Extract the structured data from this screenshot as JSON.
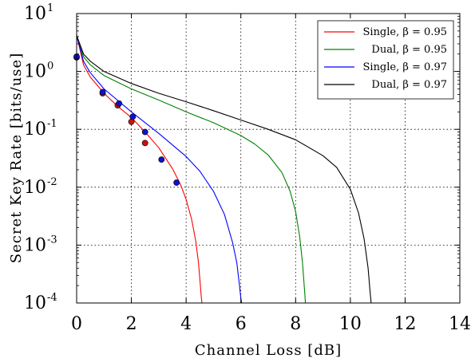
{
  "chart_data": {
    "type": "line",
    "xlabel": "Channel Loss [dB]",
    "ylabel": "Secret Key Rate [bits/use]",
    "xlim": [
      0,
      14
    ],
    "ylim": [
      0.0001,
      10
    ],
    "yscale": "log",
    "grid": true,
    "legend_position": "top-right",
    "x_ticks": [
      "0",
      "2",
      "4",
      "6",
      "8",
      "10",
      "12",
      "14"
    ],
    "y_ticks": [
      {
        "base": "10",
        "exp": "-4"
      },
      {
        "base": "10",
        "exp": "-3"
      },
      {
        "base": "10",
        "exp": "-2"
      },
      {
        "base": "10",
        "exp": "-1"
      },
      {
        "base": "10",
        "exp": "0"
      },
      {
        "base": "10",
        "exp": "1"
      }
    ],
    "series": [
      {
        "name": "Single, β = 0.95",
        "color": "#ff0000",
        "x": [
          0.0,
          0.25,
          0.5,
          1.0,
          1.5,
          2.0,
          2.5,
          3.0,
          3.5,
          3.8,
          4.0,
          4.2,
          4.35,
          4.45,
          4.52,
          4.56,
          4.58
        ],
        "y": [
          4.2,
          1.3,
          0.8,
          0.42,
          0.25,
          0.16,
          0.09,
          0.048,
          0.021,
          0.011,
          0.0062,
          0.0028,
          0.0012,
          0.0005,
          0.0002,
          0.00012,
          0.0001
        ]
      },
      {
        "name": "Dual, β = 0.95",
        "color": "#008000",
        "x": [
          0.0,
          0.25,
          0.5,
          1.0,
          2.0,
          3.0,
          4.0,
          5.0,
          6.0,
          6.5,
          7.0,
          7.5,
          7.8,
          8.0,
          8.15,
          8.25,
          8.32,
          8.36
        ],
        "y": [
          4.2,
          1.8,
          1.3,
          0.85,
          0.5,
          0.32,
          0.2,
          0.13,
          0.078,
          0.056,
          0.036,
          0.018,
          0.0085,
          0.0038,
          0.0014,
          0.0005,
          0.00018,
          0.0001
        ]
      },
      {
        "name": "Single, β = 0.97",
        "color": "#0000ff",
        "x": [
          0.0,
          0.25,
          0.5,
          1.0,
          2.0,
          3.0,
          4.0,
          4.5,
          5.0,
          5.4,
          5.7,
          5.85,
          5.95,
          6.0,
          6.03
        ],
        "y": [
          4.2,
          1.5,
          0.95,
          0.5,
          0.2,
          0.085,
          0.034,
          0.019,
          0.0085,
          0.0034,
          0.0011,
          0.0005,
          0.0002,
          0.00012,
          0.0001
        ]
      },
      {
        "name": "Dual, β = 0.97",
        "color": "#000000",
        "x": [
          0.0,
          0.25,
          0.5,
          1.0,
          2.0,
          3.0,
          4.0,
          5.0,
          6.0,
          7.0,
          8.0,
          9.0,
          9.5,
          10.0,
          10.3,
          10.5,
          10.65,
          10.72,
          10.76
        ],
        "y": [
          4.2,
          2.0,
          1.5,
          1.0,
          0.62,
          0.42,
          0.3,
          0.21,
          0.145,
          0.1,
          0.066,
          0.035,
          0.022,
          0.0092,
          0.0036,
          0.0013,
          0.0004,
          0.00016,
          0.0001
        ]
      }
    ],
    "markers": [
      {
        "color": "#cc1111",
        "x": [
          0.0,
          0.95,
          1.5,
          2.0,
          2.5
        ],
        "y": [
          1.75,
          0.42,
          0.26,
          0.135,
          0.058
        ]
      },
      {
        "color": "#1111cc",
        "x": [
          0.0,
          0.95,
          1.55,
          2.05,
          2.5,
          3.1,
          3.65
        ],
        "y": [
          1.8,
          0.44,
          0.28,
          0.165,
          0.09,
          0.03,
          0.012
        ]
      }
    ]
  }
}
